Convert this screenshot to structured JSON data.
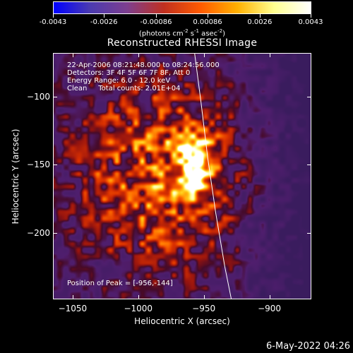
{
  "colorbar": {
    "tick_labels": [
      "-0.0043",
      "-0.0026",
      "-0.00086",
      "0.00086",
      "0.0026",
      "0.0043"
    ],
    "tick_values": [
      -0.0043,
      -0.0026,
      -0.00086,
      0.00086,
      0.0026,
      0.0043
    ],
    "units_prefix": "(photons cm",
    "units_exp1": "-2",
    "units_mid1": " s",
    "units_exp2": "-1",
    "units_mid2": " asec",
    "units_exp3": "-2",
    "units_suffix": ")",
    "colors": [
      "#0000ff",
      "#4b3bb0",
      "#7d3f8f",
      "#c03020",
      "#ff5a00",
      "#ffb000",
      "#ffff90",
      "#ffffff"
    ]
  },
  "chart_data": {
    "type": "heatmap",
    "title": "Reconstructed RHESSI Image",
    "xlabel": "Heliocentric X (arcsec)",
    "ylabel": "Heliocentric Y (arcsec)",
    "xlim": [
      -1065,
      -868
    ],
    "ylim": [
      -249,
      -68
    ],
    "x_ticks": [
      -1050,
      -1000,
      -950,
      -900
    ],
    "x_tick_labels": [
      "−1050",
      "−1000",
      "−950",
      "−900"
    ],
    "y_ticks": [
      -100,
      -150,
      -200
    ],
    "y_tick_labels": [
      "−100",
      "−150",
      "−200"
    ],
    "colorbar_range": [
      -0.0043,
      0.0043
    ],
    "peak_position": [
      -956,
      -144
    ],
    "limb": "solar limb line crossing frame",
    "annotations": {
      "time": "22-Apr-2006 08:21:48.000 to 08:24:56.000",
      "detectors": "Detectors: 3F 4F 5F 6F 7F 8F, Att 0",
      "energy": "Energy Range: 6.0 - 12.0 keV",
      "clean": "Clean     Total counts: 2.01E+04",
      "peak": "Position of Peak = [-956,-144]"
    }
  },
  "timestamp": "6-May-2022 04:26"
}
